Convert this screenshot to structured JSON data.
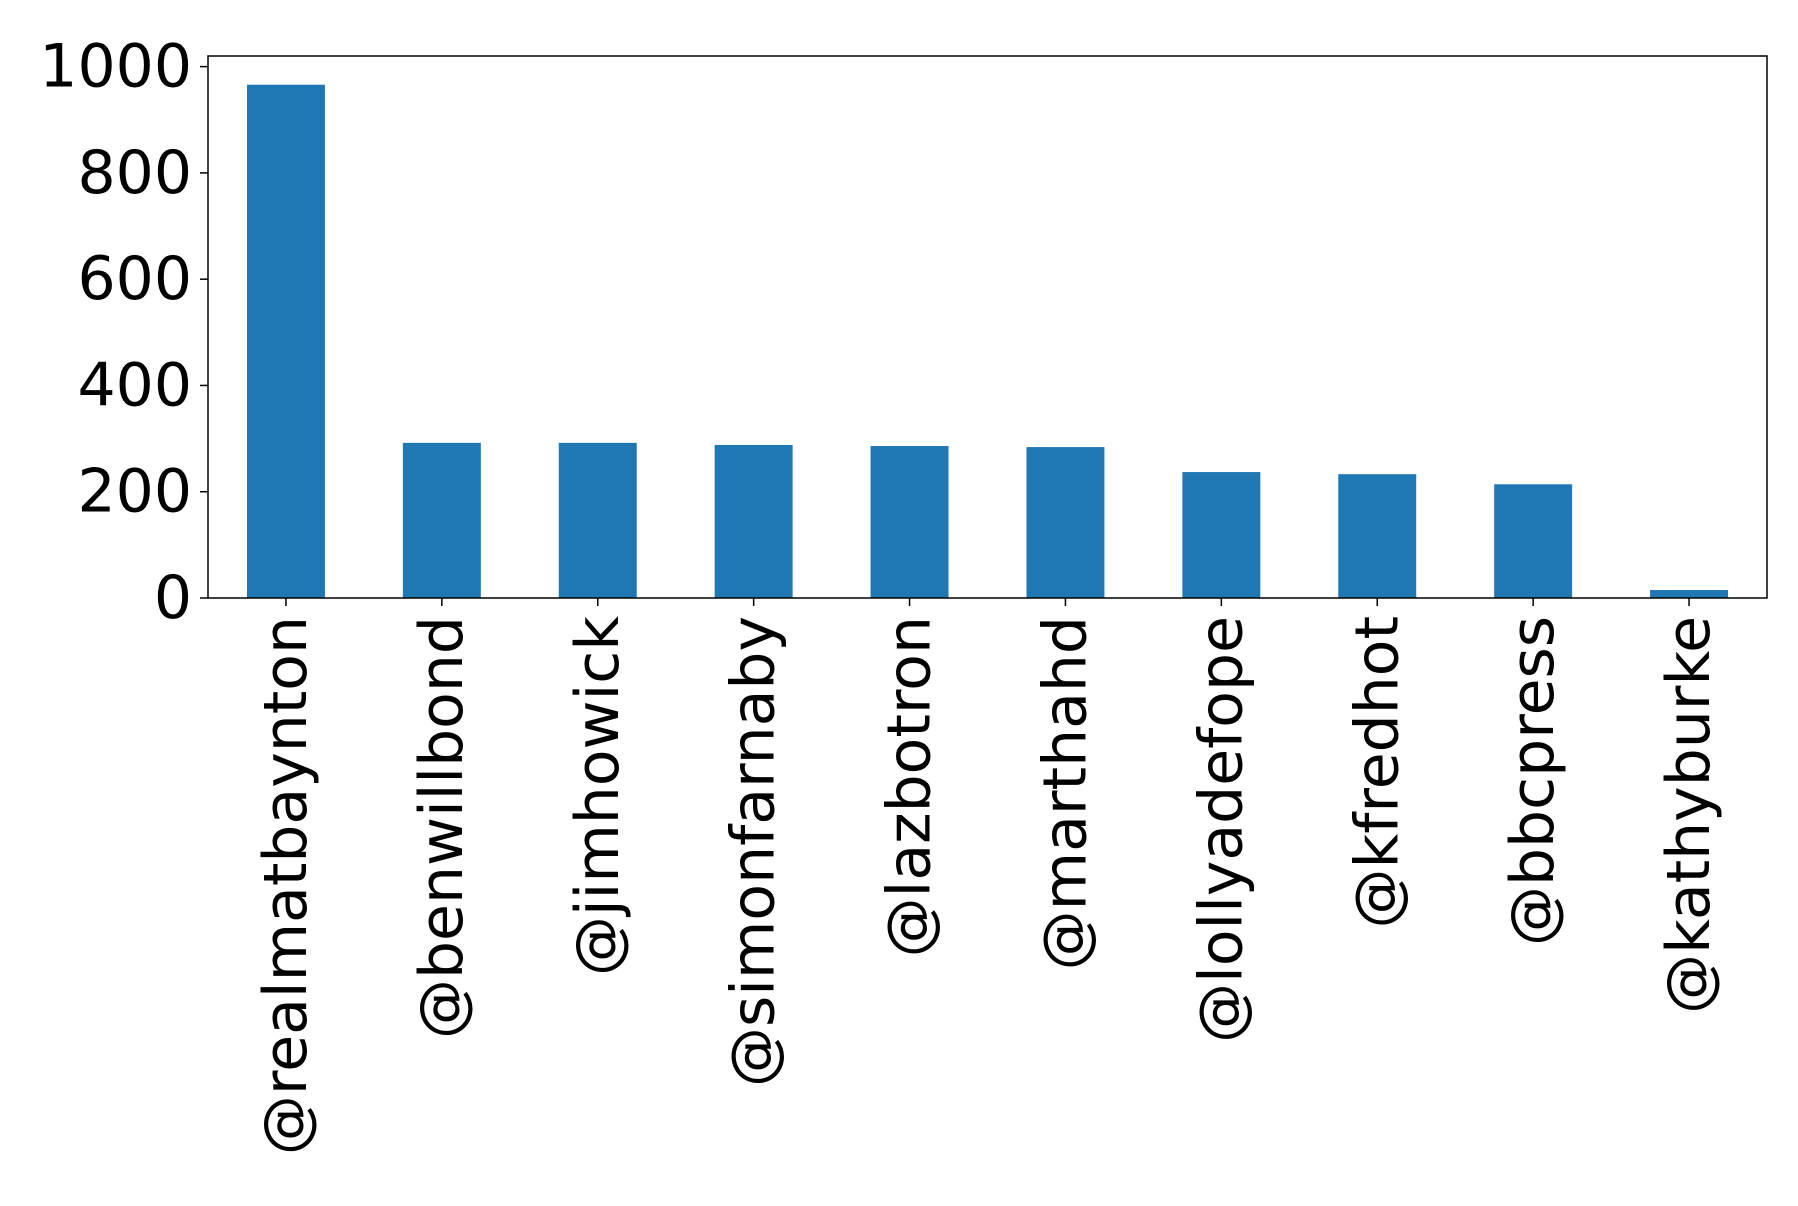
{
  "chart_data": {
    "type": "bar",
    "title": "",
    "xlabel": "",
    "ylabel": "",
    "categories": [
      "@realmatbaynton",
      "@benwillbond",
      "@jimhowick",
      "@simonfarnaby",
      "@lazbotron",
      "@marthahd",
      "@lollyadefope",
      "@kfredhot",
      "@bbcpress",
      "@kathyburke"
    ],
    "values": [
      966,
      292,
      292,
      288,
      286,
      284,
      237,
      233,
      214,
      15
    ],
    "ylim": [
      0,
      1020
    ],
    "yticks": [
      0,
      200,
      400,
      600,
      800,
      1000
    ],
    "ytick_labels": [
      "0",
      "200",
      "400",
      "600",
      "800",
      "1000"
    ],
    "bar_color": "#1f77b4",
    "grid": false,
    "legend": "none"
  }
}
